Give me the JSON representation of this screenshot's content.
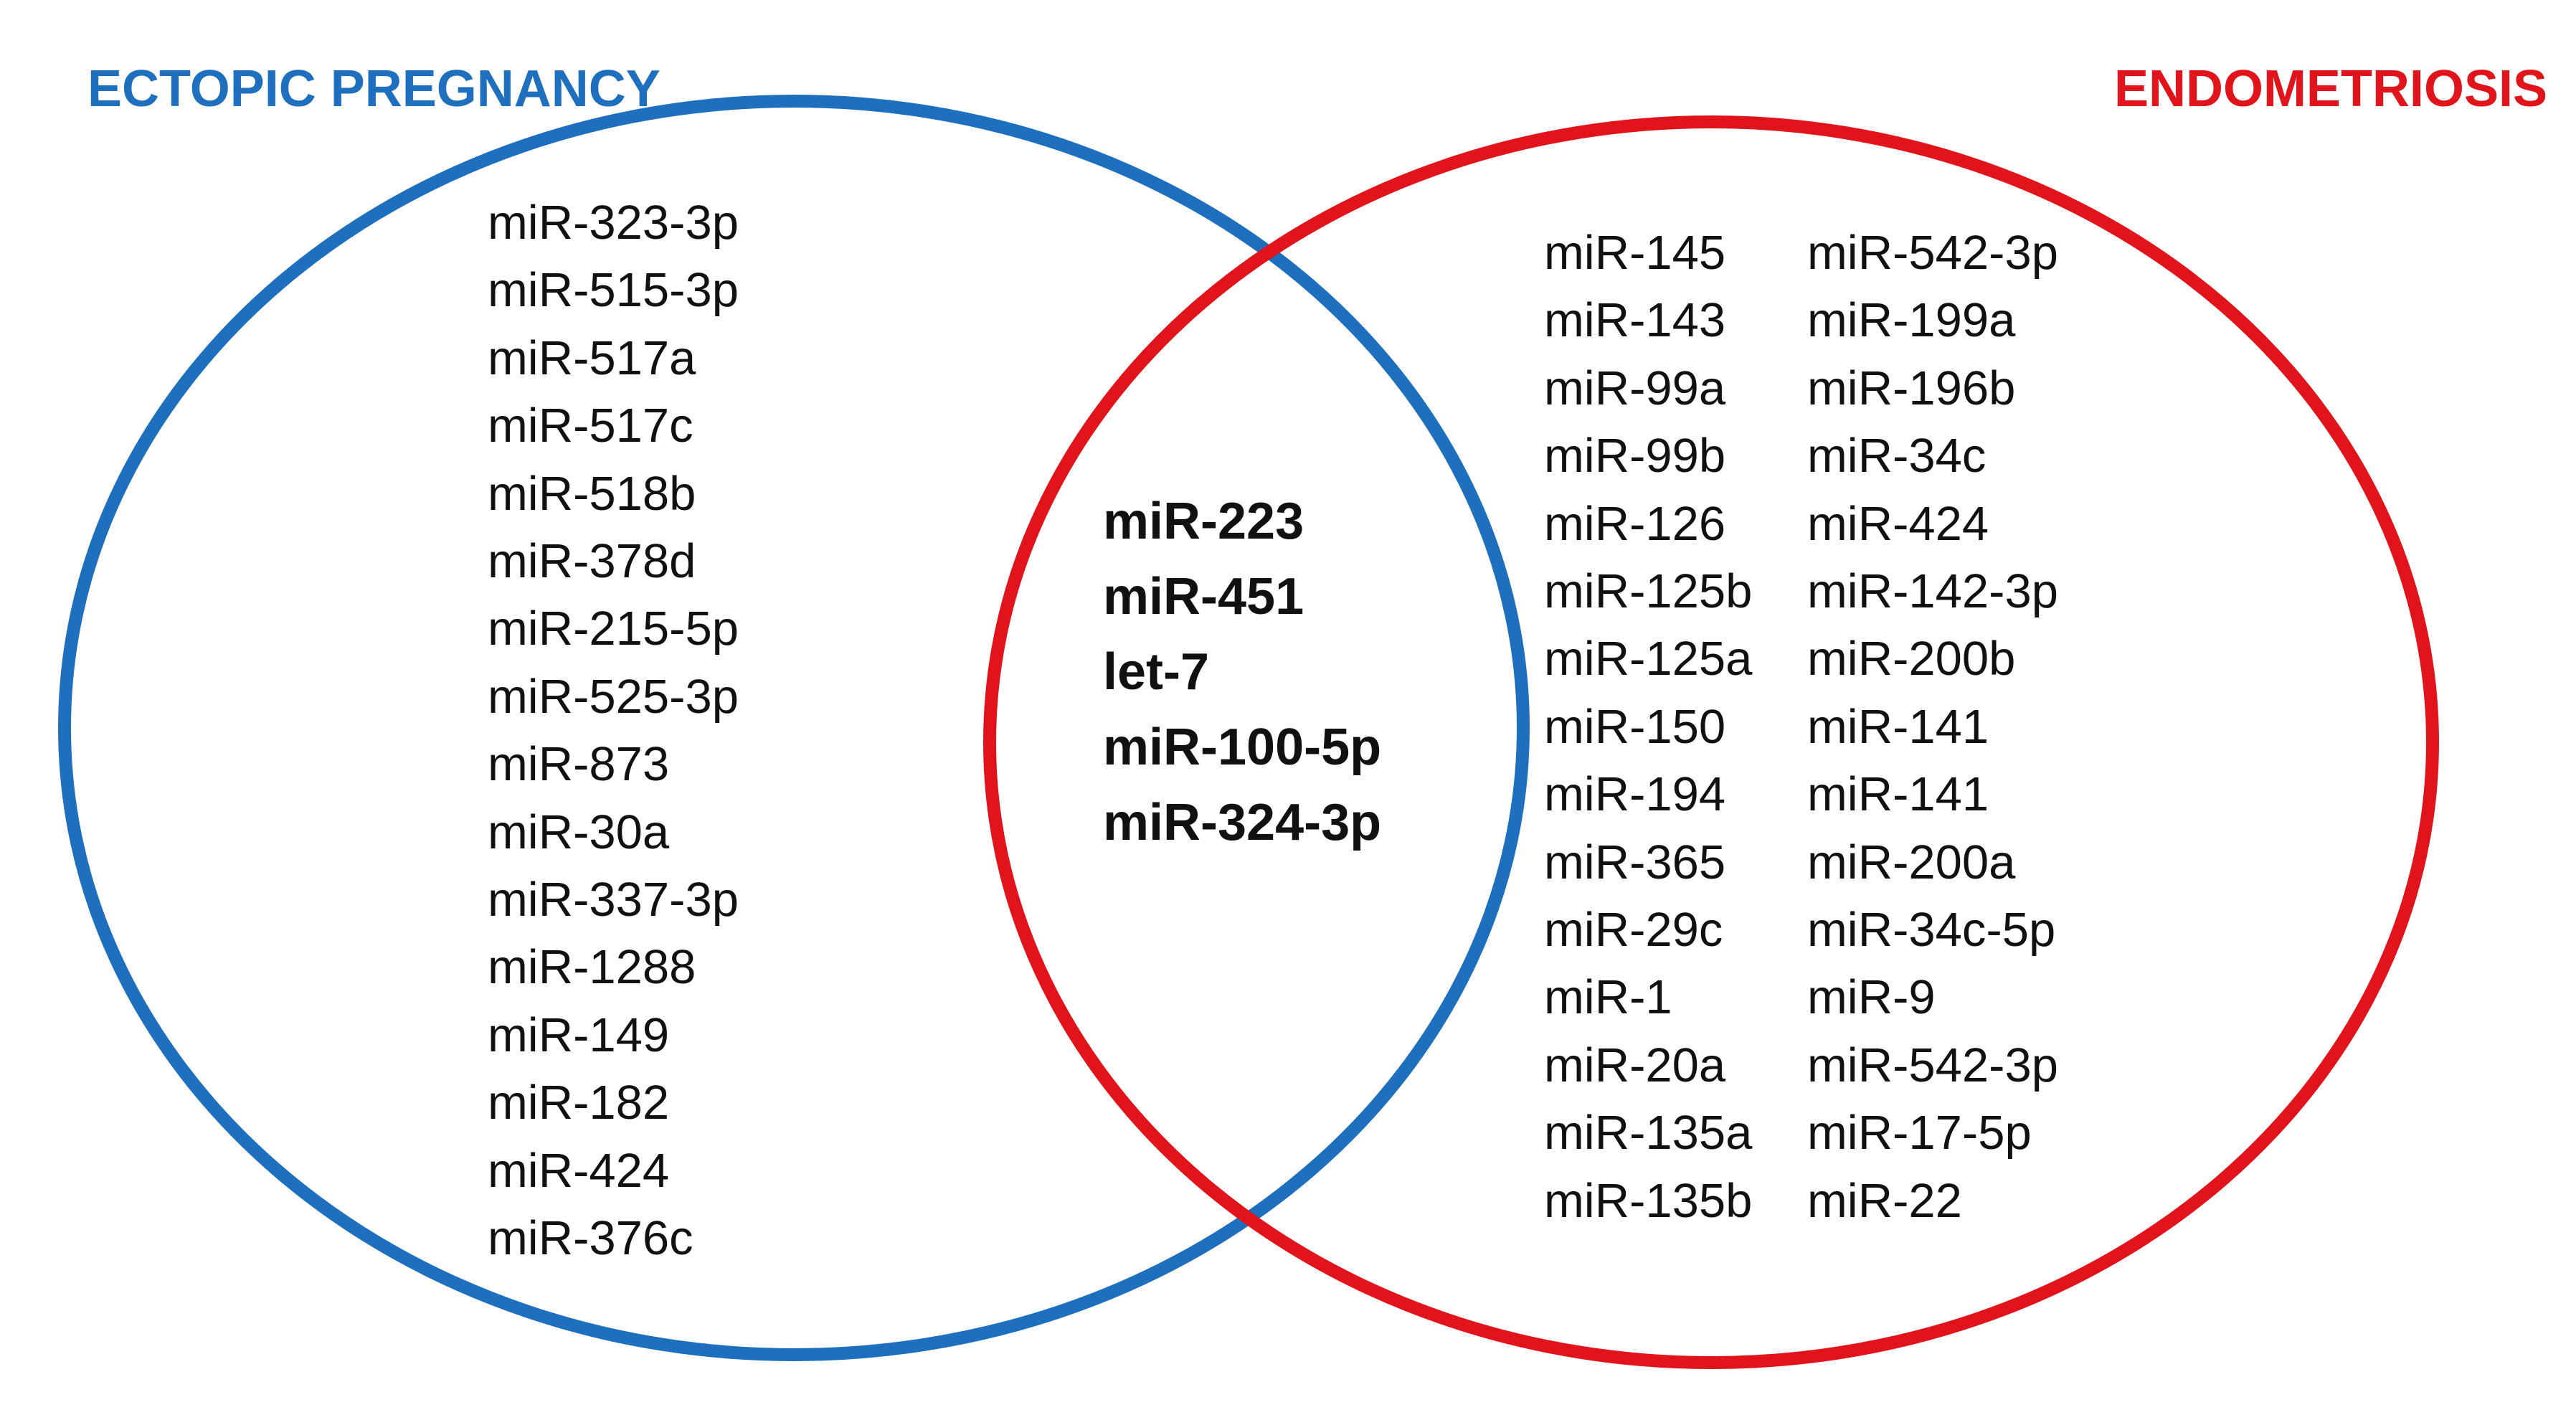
{
  "colors": {
    "ectopic_pregnancy": "#1F6FBF",
    "endometriosis": "#E2141B",
    "text": "#111111",
    "background": "#FFFFFF"
  },
  "sets": {
    "left": {
      "title": "ECTOPIC PREGNANCY",
      "items": [
        "miR-323-3p",
        "miR-515-3p",
        "miR-517a",
        "miR-517c",
        "miR-518b",
        "miR-378d",
        "miR-215-5p",
        "miR-525-3p",
        "miR-873",
        "miR-30a",
        "miR-337-3p",
        "miR-1288",
        "miR-149",
        "miR-182",
        "miR-424",
        "miR-376c"
      ]
    },
    "right": {
      "title": "ENDOMETRIOSIS",
      "column_1": [
        "miR-145",
        "miR-143",
        "miR-99a",
        "miR-99b",
        "miR-126",
        "miR-125b",
        "miR-125a",
        "miR-150",
        "miR-194",
        "miR-365",
        "miR-29c",
        "miR-1",
        "miR-20a",
        "miR-135a",
        "miR-135b"
      ],
      "column_2": [
        "miR-542-3p",
        "miR-199a",
        "miR-196b",
        "miR-34c",
        "miR-424",
        "miR-142-3p",
        "miR-200b",
        "miR-141",
        "miR-141",
        "miR-200a",
        "miR-34c-5p",
        "miR-9",
        "miR-542-3p",
        "miR-17-5p",
        "miR-22"
      ]
    },
    "intersection": {
      "items": [
        "miR-223",
        "miR-451",
        "let-7",
        "miR-100-5p",
        "miR-324-3p"
      ]
    }
  }
}
